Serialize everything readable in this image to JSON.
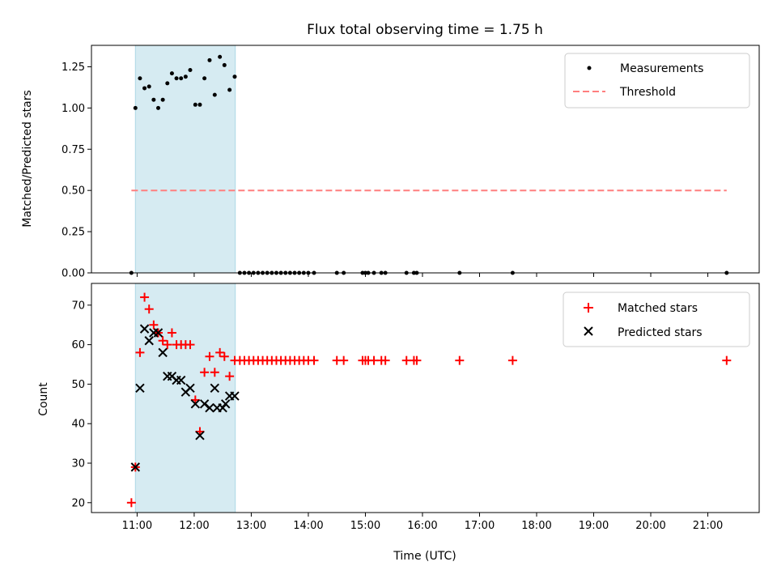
{
  "chart_data": [
    {
      "type": "scatter",
      "panel": "top",
      "title": "Flux total observing time = 1.75 h",
      "xlabel": "",
      "ylabel": "Matched/Predicted stars",
      "xlim": [
        10.2,
        21.9
      ],
      "ylim": [
        0,
        1.38
      ],
      "yticks": [
        0.0,
        0.25,
        0.5,
        0.75,
        1.0,
        1.25
      ],
      "ytick_labels": [
        "0.00",
        "0.25",
        "0.50",
        "0.75",
        "1.00",
        "1.25"
      ],
      "shaded_region": {
        "x": [
          10.97,
          12.72
        ],
        "color": "#add8e6"
      },
      "series": [
        {
          "name": "Measurements",
          "color": "#000000",
          "marker": "dot",
          "points": [
            [
              10.9,
              0.0
            ],
            [
              10.97,
              1.0
            ],
            [
              11.05,
              1.18
            ],
            [
              11.13,
              1.12
            ],
            [
              11.21,
              1.13
            ],
            [
              11.29,
              1.05
            ],
            [
              11.37,
              1.0
            ],
            [
              11.45,
              1.05
            ],
            [
              11.53,
              1.15
            ],
            [
              11.61,
              1.21
            ],
            [
              11.69,
              1.18
            ],
            [
              11.77,
              1.18
            ],
            [
              11.85,
              1.19
            ],
            [
              11.93,
              1.23
            ],
            [
              12.02,
              1.02
            ],
            [
              12.1,
              1.02
            ],
            [
              12.18,
              1.18
            ],
            [
              12.27,
              1.29
            ],
            [
              12.36,
              1.08
            ],
            [
              12.45,
              1.31
            ],
            [
              12.53,
              1.26
            ],
            [
              12.62,
              1.11
            ],
            [
              12.71,
              1.19
            ],
            [
              12.8,
              0.0
            ],
            [
              12.88,
              0.0
            ],
            [
              12.96,
              0.0
            ],
            [
              13.04,
              0.0
            ],
            [
              13.12,
              0.0
            ],
            [
              13.2,
              0.0
            ],
            [
              13.28,
              0.0
            ],
            [
              13.36,
              0.0
            ],
            [
              13.44,
              0.0
            ],
            [
              13.52,
              0.0
            ],
            [
              13.6,
              0.0
            ],
            [
              13.68,
              0.0
            ],
            [
              13.76,
              0.0
            ],
            [
              13.84,
              0.0
            ],
            [
              13.92,
              0.0
            ],
            [
              14.0,
              0.0
            ],
            [
              14.1,
              0.0
            ],
            [
              14.5,
              0.0
            ],
            [
              14.62,
              0.0
            ],
            [
              14.95,
              0.0
            ],
            [
              15.0,
              0.0
            ],
            [
              15.05,
              0.0
            ],
            [
              15.15,
              0.0
            ],
            [
              15.28,
              0.0
            ],
            [
              15.35,
              0.0
            ],
            [
              15.72,
              0.0
            ],
            [
              15.85,
              0.0
            ],
            [
              15.9,
              0.0
            ],
            [
              16.65,
              0.0
            ],
            [
              17.58,
              0.0
            ],
            [
              21.33,
              0.0
            ]
          ]
        },
        {
          "name": "Threshold",
          "color": "#ff7f7f",
          "style": "dashed",
          "points": [
            [
              10.9,
              0.5
            ],
            [
              21.33,
              0.5
            ]
          ]
        }
      ],
      "legend": {
        "position": "top-right",
        "items": [
          "Measurements",
          "Threshold"
        ]
      }
    },
    {
      "type": "scatter",
      "panel": "bottom",
      "title": "",
      "xlabel": "Time (UTC)",
      "ylabel": "Count",
      "xlim": [
        10.2,
        21.9
      ],
      "ylim": [
        17.5,
        75.5
      ],
      "yticks": [
        20,
        30,
        40,
        50,
        60,
        70
      ],
      "ytick_labels": [
        "20",
        "30",
        "40",
        "50",
        "60",
        "70"
      ],
      "xticks": [
        11,
        12,
        13,
        14,
        15,
        16,
        17,
        18,
        19,
        20,
        21
      ],
      "xtick_labels": [
        "11:00",
        "12:00",
        "13:00",
        "14:00",
        "15:00",
        "16:00",
        "17:00",
        "18:00",
        "19:00",
        "20:00",
        "21:00"
      ],
      "shaded_region": {
        "x": [
          10.97,
          12.72
        ],
        "color": "#add8e6"
      },
      "series": [
        {
          "name": "Matched stars",
          "color": "#ff0000",
          "marker": "plus",
          "points": [
            [
              10.9,
              20
            ],
            [
              10.97,
              29
            ],
            [
              11.05,
              58
            ],
            [
              11.13,
              72
            ],
            [
              11.21,
              69
            ],
            [
              11.29,
              65
            ],
            [
              11.37,
              63
            ],
            [
              11.45,
              61
            ],
            [
              11.53,
              60
            ],
            [
              11.61,
              63
            ],
            [
              11.69,
              60
            ],
            [
              11.77,
              60
            ],
            [
              11.85,
              60
            ],
            [
              11.93,
              60
            ],
            [
              12.02,
              46
            ],
            [
              12.1,
              38
            ],
            [
              12.18,
              53
            ],
            [
              12.27,
              57
            ],
            [
              12.36,
              53
            ],
            [
              12.45,
              58
            ],
            [
              12.53,
              57
            ],
            [
              12.62,
              52
            ],
            [
              12.71,
              56
            ],
            [
              12.8,
              56
            ],
            [
              12.88,
              56
            ],
            [
              12.96,
              56
            ],
            [
              13.04,
              56
            ],
            [
              13.12,
              56
            ],
            [
              13.2,
              56
            ],
            [
              13.28,
              56
            ],
            [
              13.36,
              56
            ],
            [
              13.44,
              56
            ],
            [
              13.52,
              56
            ],
            [
              13.6,
              56
            ],
            [
              13.68,
              56
            ],
            [
              13.76,
              56
            ],
            [
              13.84,
              56
            ],
            [
              13.92,
              56
            ],
            [
              14.0,
              56
            ],
            [
              14.1,
              56
            ],
            [
              14.5,
              56
            ],
            [
              14.62,
              56
            ],
            [
              14.95,
              56
            ],
            [
              15.0,
              56
            ],
            [
              15.05,
              56
            ],
            [
              15.15,
              56
            ],
            [
              15.28,
              56
            ],
            [
              15.35,
              56
            ],
            [
              15.72,
              56
            ],
            [
              15.85,
              56
            ],
            [
              15.9,
              56
            ],
            [
              16.65,
              56
            ],
            [
              17.58,
              56
            ],
            [
              21.33,
              56
            ]
          ]
        },
        {
          "name": "Predicted stars",
          "color": "#000000",
          "marker": "x",
          "points": [
            [
              10.97,
              29
            ],
            [
              11.05,
              49
            ],
            [
              11.13,
              64
            ],
            [
              11.21,
              61
            ],
            [
              11.29,
              63
            ],
            [
              11.37,
              63
            ],
            [
              11.45,
              58
            ],
            [
              11.53,
              52
            ],
            [
              11.61,
              52
            ],
            [
              11.69,
              51
            ],
            [
              11.77,
              51
            ],
            [
              11.85,
              48
            ],
            [
              11.93,
              49
            ],
            [
              12.02,
              45
            ],
            [
              12.1,
              37
            ],
            [
              12.18,
              45
            ],
            [
              12.27,
              44
            ],
            [
              12.36,
              49
            ],
            [
              12.4,
              44
            ],
            [
              12.5,
              44
            ],
            [
              12.55,
              45
            ],
            [
              12.62,
              47
            ],
            [
              12.71,
              47
            ]
          ]
        }
      ],
      "legend": {
        "position": "top-right",
        "items": [
          "Matched stars",
          "Predicted stars"
        ]
      }
    }
  ]
}
